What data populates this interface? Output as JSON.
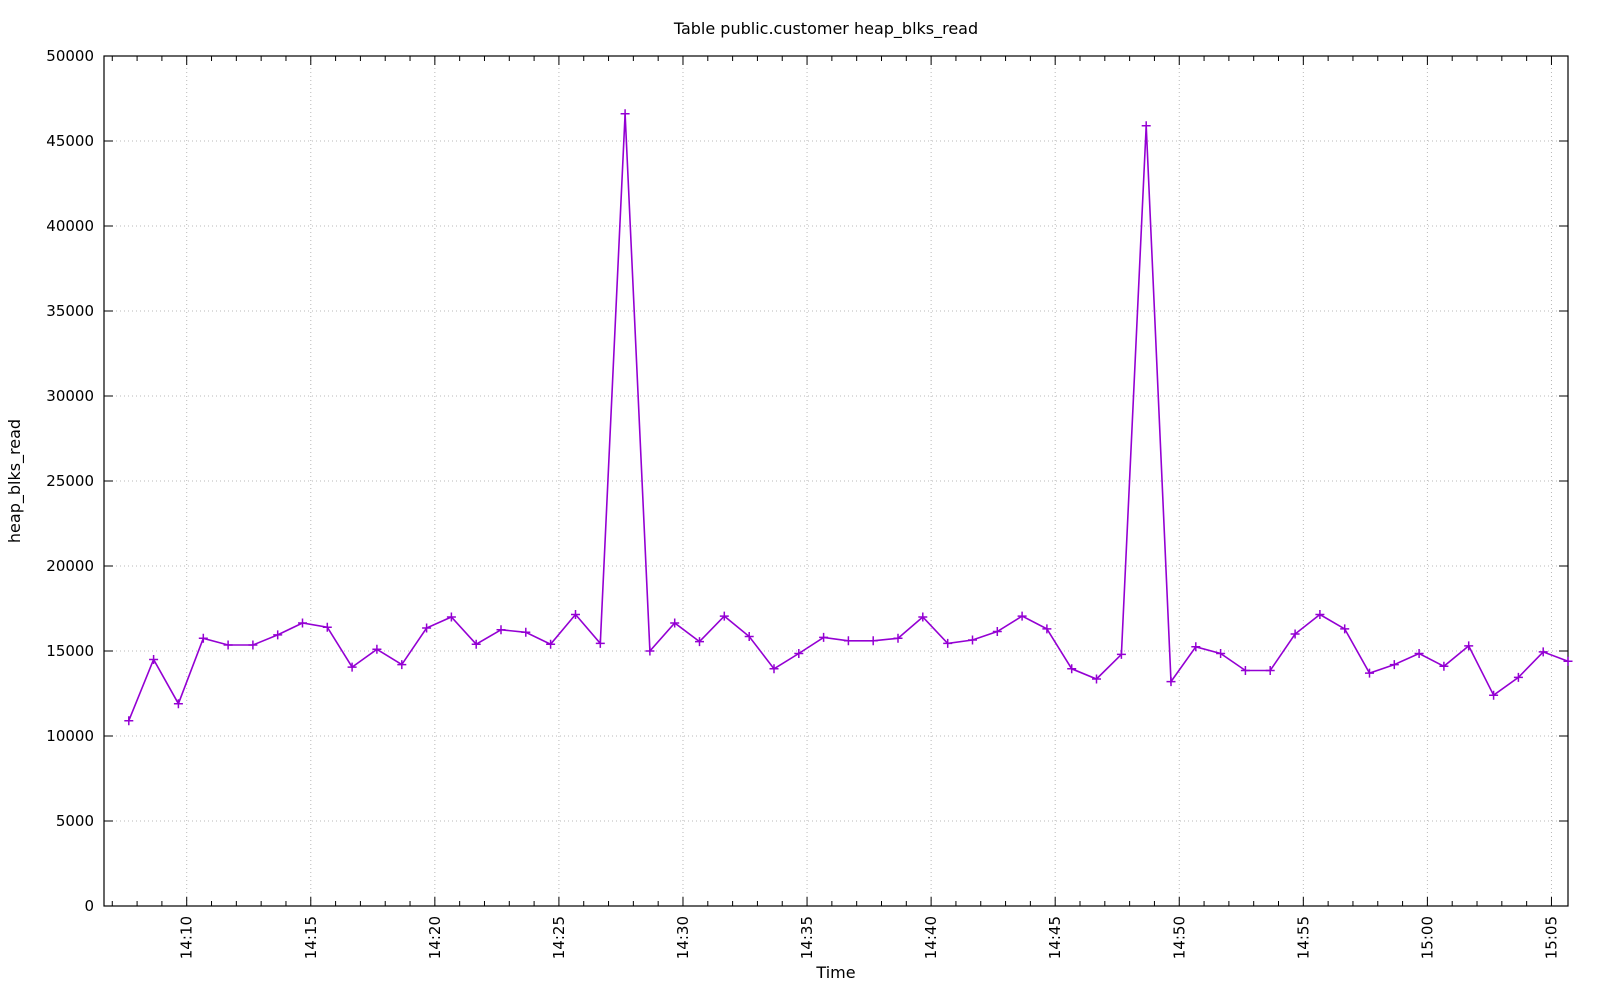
{
  "chart_data": {
    "type": "line",
    "title": "Table public.customer heap_blks_read",
    "xlabel": "Time",
    "ylabel": "heap_blks_read",
    "legend": {
      "visible": false
    },
    "grid": {
      "visible": true,
      "style": "dotted",
      "color": "#b8b8b8"
    },
    "background_color": "#ffffff",
    "border_color": "#000000",
    "x_axis": {
      "start": "14:06:40",
      "end": "15:05:40",
      "major_tick_labels": [
        "14:10",
        "14:15",
        "14:20",
        "14:25",
        "14:30",
        "14:35",
        "14:40",
        "14:45",
        "14:50",
        "14:55",
        "15:00",
        "15:05"
      ],
      "major_tick_interval_seconds": 300,
      "minor_tick_interval_seconds": 60,
      "label_rotation_degrees": 90
    },
    "y_axis": {
      "min": 0,
      "max": 50000,
      "tick_interval": 5000,
      "tick_labels": [
        "0",
        "5000",
        "10000",
        "15000",
        "20000",
        "25000",
        "30000",
        "35000",
        "40000",
        "45000",
        "50000"
      ]
    },
    "series": [
      {
        "name": "heap_blks_read",
        "color": "#9400D3",
        "marker": "plus",
        "times": [
          "14:07:40",
          "14:08:40",
          "14:09:40",
          "14:10:40",
          "14:11:40",
          "14:12:40",
          "14:13:40",
          "14:14:40",
          "14:15:40",
          "14:16:40",
          "14:17:40",
          "14:18:40",
          "14:19:40",
          "14:20:40",
          "14:21:40",
          "14:22:40",
          "14:23:40",
          "14:24:40",
          "14:25:40",
          "14:26:40",
          "14:27:40",
          "14:28:40",
          "14:29:40",
          "14:30:40",
          "14:31:40",
          "14:32:40",
          "14:33:40",
          "14:34:40",
          "14:35:40",
          "14:36:40",
          "14:37:40",
          "14:38:40",
          "14:39:40",
          "14:40:40",
          "14:41:40",
          "14:42:40",
          "14:43:40",
          "14:44:40",
          "14:45:40",
          "14:46:40",
          "14:47:40",
          "14:48:40",
          "14:49:40",
          "14:50:40",
          "14:51:40",
          "14:52:40",
          "14:53:40",
          "14:54:40",
          "14:55:40",
          "14:56:40",
          "14:57:40",
          "14:58:40",
          "14:59:40",
          "15:00:40",
          "15:01:40",
          "15:02:40",
          "15:03:40",
          "15:04:40",
          "15:05:40"
        ],
        "values": [
          10900,
          14500,
          11900,
          15750,
          15350,
          15350,
          15950,
          16650,
          16400,
          14050,
          15100,
          14200,
          16350,
          17000,
          15400,
          16250,
          16100,
          15400,
          17150,
          15450,
          46600,
          15000,
          16650,
          15550,
          17050,
          15850,
          13950,
          14850,
          15800,
          15600,
          15600,
          15750,
          17000,
          15450,
          15650,
          16150,
          17050,
          16300,
          13950,
          13350,
          14800,
          45900,
          13200,
          15250,
          14850,
          13850,
          13850,
          16000,
          17150,
          16300,
          13700,
          14200,
          14850,
          14100,
          15300,
          12400,
          13450,
          14950,
          14400
        ]
      }
    ]
  }
}
